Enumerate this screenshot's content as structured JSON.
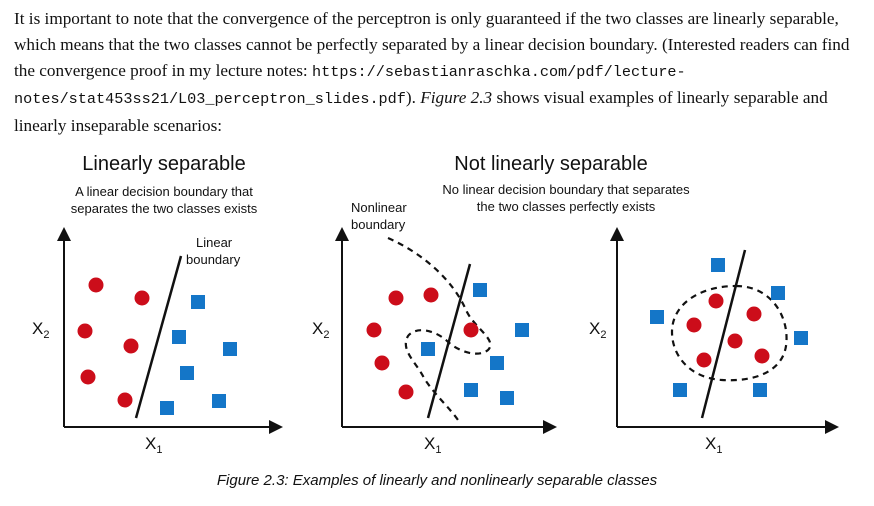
{
  "paragraph": {
    "text_1": "It is important to note that the convergence of the perceptron is only guaranteed if the two classes are linearly separable, which means that the two classes cannot be perfectly separated by a linear decision boundary. (Interested readers can find the convergence proof in my lecture notes: ",
    "url": "https://sebastianraschka.com/pdf/lecture-notes/stat453ss21/L03_perceptron_slides.pdf",
    "text_2": "). ",
    "figure_ref": "Figure 2.3",
    "text_3": " shows visual examples of linearly separable and linearly inseparable scenarios:"
  },
  "figure": {
    "left_title": "Linearly separable",
    "left_subtitle_line1": "A linear decision boundary that",
    "left_subtitle_line2": "separates the two classes exists",
    "linear_label_line1": "Linear",
    "linear_label_line2": "boundary",
    "right_title": "Not linearly separable",
    "right_subtitle_line1": "No linear decision boundary that separates",
    "right_subtitle_line2": "the two classes perfectly exists",
    "nonlinear_label_line1": "Nonlinear",
    "nonlinear_label_line2": "boundary",
    "axis_x_label": "X",
    "axis_x_sub": "1",
    "axis_y_label": "X",
    "axis_y_sub": "2"
  },
  "colors": {
    "circle_class": "#cc0d1a",
    "square_class": "#1476c8",
    "axes": "#111111"
  },
  "caption": "Figure 2.3: Examples of linearly and nonlinearly separable classes"
}
